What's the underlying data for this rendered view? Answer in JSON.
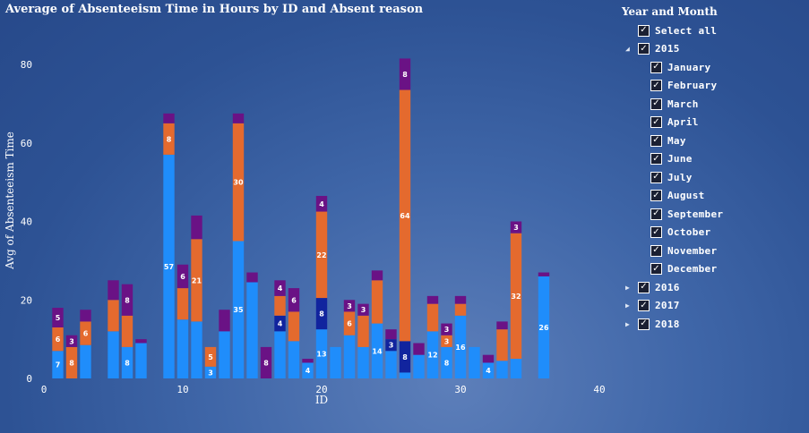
{
  "title": "Average of Absenteeism Time in Hours by ID and Absent reason",
  "colors": {
    "light_blue": "#1f8dfb",
    "orange": "#e46a2e",
    "purple": "#6a1285",
    "dark_blue": "#11249e"
  },
  "chart_data": {
    "type": "bar",
    "stacked": true,
    "xlabel": "ID",
    "ylabel": "Avg of Absenteeism Time",
    "xlim": [
      0,
      40
    ],
    "ylim": [
      0,
      80
    ],
    "x_ticks": [
      0,
      10,
      20,
      30,
      40
    ],
    "y_ticks": [
      0,
      20,
      40,
      60,
      80
    ],
    "series_colors": [
      "light_blue",
      "dark_blue",
      "orange",
      "purple"
    ],
    "bars": [
      {
        "id": 1,
        "segments": [
          {
            "c": "light_blue",
            "v": 7,
            "label": "7"
          },
          {
            "c": "orange",
            "v": 6,
            "label": "6"
          },
          {
            "c": "purple",
            "v": 5,
            "label": "5"
          }
        ]
      },
      {
        "id": 2,
        "segments": [
          {
            "c": "orange",
            "v": 8,
            "label": "8"
          },
          {
            "c": "purple",
            "v": 3,
            "label": "3"
          }
        ]
      },
      {
        "id": 3,
        "segments": [
          {
            "c": "light_blue",
            "v": 8.5
          },
          {
            "c": "orange",
            "v": 6,
            "label": "6"
          },
          {
            "c": "purple",
            "v": 3
          }
        ]
      },
      {
        "id": 5,
        "segments": [
          {
            "c": "light_blue",
            "v": 12
          },
          {
            "c": "orange",
            "v": 8
          },
          {
            "c": "purple",
            "v": 5
          }
        ]
      },
      {
        "id": 6,
        "segments": [
          {
            "c": "light_blue",
            "v": 8,
            "label": "8"
          },
          {
            "c": "orange",
            "v": 8
          },
          {
            "c": "purple",
            "v": 8,
            "label": "8"
          }
        ]
      },
      {
        "id": 7,
        "segments": [
          {
            "c": "light_blue",
            "v": 9
          },
          {
            "c": "purple",
            "v": 1
          }
        ]
      },
      {
        "id": 9,
        "segments": [
          {
            "c": "light_blue",
            "v": 57,
            "label": "57"
          },
          {
            "c": "orange",
            "v": 8,
            "label": "8"
          },
          {
            "c": "purple",
            "v": 2.5
          }
        ]
      },
      {
        "id": 10,
        "segments": [
          {
            "c": "light_blue",
            "v": 15
          },
          {
            "c": "orange",
            "v": 8
          },
          {
            "c": "purple",
            "v": 6,
            "label": "6"
          }
        ]
      },
      {
        "id": 11,
        "segments": [
          {
            "c": "light_blue",
            "v": 14.5
          },
          {
            "c": "orange",
            "v": 21,
            "label": "21"
          },
          {
            "c": "purple",
            "v": 6
          }
        ]
      },
      {
        "id": 12,
        "segments": [
          {
            "c": "light_blue",
            "v": 3,
            "label": "3"
          },
          {
            "c": "orange",
            "v": 5,
            "label": "5"
          }
        ]
      },
      {
        "id": 13,
        "segments": [
          {
            "c": "light_blue",
            "v": 12
          },
          {
            "c": "purple",
            "v": 5.5
          }
        ]
      },
      {
        "id": 14,
        "segments": [
          {
            "c": "light_blue",
            "v": 35,
            "label": "35"
          },
          {
            "c": "orange",
            "v": 30,
            "label": "30"
          },
          {
            "c": "purple",
            "v": 2.5
          }
        ]
      },
      {
        "id": 15,
        "segments": [
          {
            "c": "light_blue",
            "v": 24.5
          },
          {
            "c": "purple",
            "v": 2.5
          }
        ]
      },
      {
        "id": 16,
        "segments": [
          {
            "c": "purple",
            "v": 8,
            "label": "8"
          }
        ]
      },
      {
        "id": 17,
        "segments": [
          {
            "c": "light_blue",
            "v": 12
          },
          {
            "c": "dark_blue",
            "v": 4,
            "label": "4"
          },
          {
            "c": "orange",
            "v": 5
          },
          {
            "c": "purple",
            "v": 4,
            "label": "4"
          }
        ]
      },
      {
        "id": 18,
        "segments": [
          {
            "c": "light_blue",
            "v": 9.5
          },
          {
            "c": "orange",
            "v": 7.5
          },
          {
            "c": "purple",
            "v": 6,
            "label": "6"
          }
        ]
      },
      {
        "id": 19,
        "segments": [
          {
            "c": "light_blue",
            "v": 4,
            "label": "4"
          },
          {
            "c": "purple",
            "v": 1
          }
        ]
      },
      {
        "id": 20,
        "segments": [
          {
            "c": "light_blue",
            "v": 12.5,
            "label": "13"
          },
          {
            "c": "dark_blue",
            "v": 8,
            "label": "8"
          },
          {
            "c": "orange",
            "v": 22,
            "label": "22"
          },
          {
            "c": "purple",
            "v": 4,
            "label": "4"
          }
        ]
      },
      {
        "id": 21,
        "segments": [
          {
            "c": "light_blue",
            "v": 8
          }
        ]
      },
      {
        "id": 22,
        "segments": [
          {
            "c": "light_blue",
            "v": 11
          },
          {
            "c": "orange",
            "v": 6,
            "label": "6"
          },
          {
            "c": "purple",
            "v": 3,
            "label": "3"
          }
        ]
      },
      {
        "id": 23,
        "segments": [
          {
            "c": "light_blue",
            "v": 8
          },
          {
            "c": "orange",
            "v": 8
          },
          {
            "c": "purple",
            "v": 3,
            "label": "3"
          }
        ]
      },
      {
        "id": 24,
        "segments": [
          {
            "c": "light_blue",
            "v": 14,
            "label": "14"
          },
          {
            "c": "orange",
            "v": 11
          },
          {
            "c": "purple",
            "v": 2.5
          }
        ]
      },
      {
        "id": 25,
        "segments": [
          {
            "c": "light_blue",
            "v": 7
          },
          {
            "c": "dark_blue",
            "v": 3,
            "label": "3"
          },
          {
            "c": "purple",
            "v": 2.5
          }
        ]
      },
      {
        "id": 26,
        "segments": [
          {
            "c": "light_blue",
            "v": 1.5
          },
          {
            "c": "dark_blue",
            "v": 8,
            "label": "8"
          },
          {
            "c": "orange",
            "v": 64,
            "label": "64"
          },
          {
            "c": "purple",
            "v": 8,
            "label": "8"
          }
        ]
      },
      {
        "id": 27,
        "segments": [
          {
            "c": "light_blue",
            "v": 6
          },
          {
            "c": "purple",
            "v": 3
          }
        ]
      },
      {
        "id": 28,
        "segments": [
          {
            "c": "light_blue",
            "v": 12,
            "label": "12"
          },
          {
            "c": "orange",
            "v": 7
          },
          {
            "c": "purple",
            "v": 2
          }
        ]
      },
      {
        "id": 29,
        "segments": [
          {
            "c": "light_blue",
            "v": 8,
            "label": "8"
          },
          {
            "c": "orange",
            "v": 3,
            "label": "3"
          },
          {
            "c": "purple",
            "v": 3,
            "label": "3"
          }
        ]
      },
      {
        "id": 30,
        "segments": [
          {
            "c": "light_blue",
            "v": 16,
            "label": "16"
          },
          {
            "c": "orange",
            "v": 3
          },
          {
            "c": "purple",
            "v": 2
          }
        ]
      },
      {
        "id": 31,
        "segments": [
          {
            "c": "light_blue",
            "v": 8
          }
        ]
      },
      {
        "id": 32,
        "segments": [
          {
            "c": "light_blue",
            "v": 4,
            "label": "4"
          },
          {
            "c": "purple",
            "v": 2
          }
        ]
      },
      {
        "id": 33,
        "segments": [
          {
            "c": "light_blue",
            "v": 4.5
          },
          {
            "c": "orange",
            "v": 8
          },
          {
            "c": "purple",
            "v": 2
          }
        ]
      },
      {
        "id": 34,
        "segments": [
          {
            "c": "light_blue",
            "v": 5
          },
          {
            "c": "orange",
            "v": 32,
            "label": "32"
          },
          {
            "c": "purple",
            "v": 3,
            "label": "3"
          }
        ]
      },
      {
        "id": 36,
        "segments": [
          {
            "c": "light_blue",
            "v": 26,
            "label": "26"
          },
          {
            "c": "purple",
            "v": 1
          }
        ]
      }
    ]
  },
  "slicer": {
    "title": "Year and Month",
    "select_all": "Select all",
    "years": [
      {
        "label": "2015",
        "expanded": true,
        "checked": true,
        "months": [
          "January",
          "February",
          "March",
          "April",
          "May",
          "June",
          "July",
          "August",
          "September",
          "October",
          "November",
          "December"
        ]
      },
      {
        "label": "2016",
        "expanded": false,
        "checked": true,
        "months": []
      },
      {
        "label": "2017",
        "expanded": false,
        "checked": true,
        "months": []
      },
      {
        "label": "2018",
        "expanded": false,
        "checked": true,
        "months": []
      }
    ],
    "check_glyph": "✓",
    "expanded_glyph": "◢",
    "collapsed_glyph": "▶"
  }
}
